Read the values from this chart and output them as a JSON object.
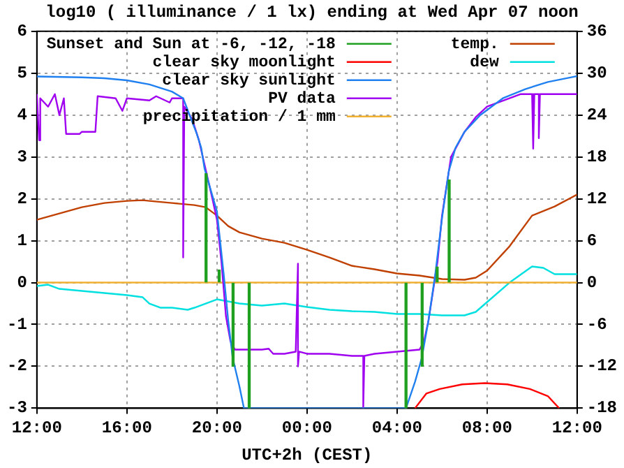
{
  "chart_data": {
    "type": "line",
    "title": "log10 ( illuminance / 1 lx) ending at Wed Apr 07 noon",
    "xlabel": "UTC+2h (CEST)",
    "xlim": [
      "--04-06T12:00",
      "--04-07T12:00"
    ],
    "xticks": [
      {
        "value": "--04-06T12:00",
        "label": "12:00"
      },
      {
        "value": "--04-06T16:00",
        "label": "16:00"
      },
      {
        "value": "--04-06T20:00",
        "label": "20:00"
      },
      {
        "value": "--04-07T00:00",
        "label": "00:00"
      },
      {
        "value": "--04-07T04:00",
        "label": "04:00"
      },
      {
        "value": "--04-07T08:00",
        "label": "08:00"
      },
      {
        "value": "--04-07T12:00",
        "label": "12:00"
      }
    ],
    "ylim": [
      -3,
      6
    ],
    "yticks": [
      -3,
      -2,
      -1,
      0,
      1,
      2,
      3,
      4,
      5,
      6
    ],
    "y2lim": [
      -18,
      36
    ],
    "y2ticks": [
      -18,
      -12,
      -6,
      0,
      6,
      12,
      18,
      24,
      30,
      36
    ],
    "grid": true,
    "legend": "top",
    "marker": "none",
    "series": [
      {
        "name": "Sunset and Sun at -6, -12, -18",
        "type": "bar",
        "color": "#20a020",
        "x": [
          "--04-06T19:31",
          "--04-06T20:06",
          "--04-06T20:43",
          "--04-06T21:26",
          "--04-07T04:24",
          "--04-07T05:07",
          "--04-07T05:47",
          "--04-07T06:19"
        ],
        "values": [
          2.6,
          0.3,
          -2.0,
          -3,
          -3,
          -2.0,
          0.37,
          2.45
        ]
      },
      {
        "name": "clear sky moonlight",
        "color": "#ff0000",
        "x": [
          "--04-07T04:48",
          "--04-07T05:18",
          "--04-07T05:54",
          "--04-07T06:54",
          "--04-07T07:54",
          "--04-07T08:54",
          "--04-07T09:54",
          "--04-07T10:42",
          "--04-07T11:12"
        ],
        "values": [
          -3,
          -2.65,
          -2.54,
          -2.43,
          -2.4,
          -2.43,
          -2.54,
          -2.71,
          -3
        ]
      },
      {
        "name": "clear sky sunlight",
        "color": "#2080f0",
        "x": [
          "--04-06T12:00",
          "--04-06T14:00",
          "--04-06T15:00",
          "--04-06T16:00",
          "--04-06T17:00",
          "--04-06T18:00",
          "--04-06T18:30",
          "--04-06T19:06",
          "--04-06T19:18",
          "--04-06T19:27",
          "--04-06T20:00",
          "--04-06T20:18",
          "--04-06T20:30",
          "--04-06T20:42",
          "--04-06T21:00",
          "--04-06T21:12",
          "--04-07T04:24",
          "--04-07T04:48",
          "--04-07T05:06",
          "--04-07T05:24",
          "--04-07T05:42",
          "--04-07T06:00",
          "--04-07T06:18",
          "--04-07T06:36",
          "--04-07T07:00",
          "--04-07T07:42",
          "--04-07T08:42",
          "--04-07T09:42",
          "--04-07T10:42",
          "--04-07T11:54",
          "--04-07T12:00"
        ],
        "values": [
          4.92,
          4.9,
          4.88,
          4.83,
          4.73,
          4.56,
          4.4,
          3.56,
          3.22,
          2.72,
          1.7,
          0.2,
          -0.9,
          -1.8,
          -2.48,
          -3,
          -3,
          -2.37,
          -1.8,
          -0.9,
          0.2,
          1.54,
          2.66,
          3.22,
          3.6,
          4.0,
          4.4,
          4.62,
          4.79,
          4.92,
          4.93
        ]
      },
      {
        "name": "PV data",
        "color": "#a000f0",
        "x": [
          "--04-06T12:00",
          "--04-06T12:06",
          "--04-06T12:09",
          "--04-06T12:30",
          "--04-06T12:48",
          "--04-06T13:00",
          "--04-06T13:12",
          "--04-06T13:18",
          "--04-06T13:54",
          "--04-06T14:00",
          "--04-06T14:36",
          "--04-06T14:42",
          "--04-06T15:30",
          "--04-06T15:48",
          "--04-06T16:00",
          "--04-06T17:00",
          "--04-06T17:18",
          "--04-06T17:54",
          "--04-06T18:00",
          "--04-06T18:30",
          "--04-06T18:30",
          "--04-06T18:33",
          "--04-06T18:54",
          "--04-06T19:12",
          "--04-06T19:30",
          "--04-06T19:48",
          "--04-06T20:00",
          "--04-06T20:12",
          "--04-06T20:24",
          "--04-06T20:36",
          "--04-06T20:48",
          "--04-06T22:00",
          "--04-06T22:18",
          "--04-06T22:30",
          "--04-06T23:00",
          "--04-06T23:30",
          "--04-06T23:36",
          "--04-06T23:36",
          "--04-06T23:39",
          "--04-07T00:00",
          "--04-07T01:00",
          "--04-07T02:00",
          "--04-07T02:30",
          "--04-07T02:30",
          "--04-07T02:33",
          "--04-07T03:00",
          "--04-07T04:00",
          "--04-07T05:00",
          "--04-07T05:12",
          "--04-07T05:24",
          "--04-07T05:36",
          "--04-07T05:48",
          "--04-07T06:00",
          "--04-07T06:12",
          "--04-07T06:24",
          "--04-07T06:36",
          "--04-07T07:00",
          "--04-07T07:30",
          "--04-07T08:00",
          "--04-07T09:00",
          "--04-07T09:30",
          "--04-07T10:00",
          "--04-07T10:03",
          "--04-07T10:06",
          "--04-07T10:18",
          "--04-07T10:18",
          "--04-07T10:21",
          "--04-07T11:00",
          "--04-07T12:00"
        ],
        "values": [
          4.5,
          3.4,
          4.4,
          4.2,
          4.5,
          4.0,
          4.4,
          3.55,
          3.55,
          3.6,
          3.6,
          4.45,
          4.4,
          4.1,
          4.4,
          4.35,
          4.45,
          4.3,
          4.4,
          4.4,
          0.6,
          4.2,
          3.9,
          3.4,
          2.7,
          2.0,
          1.5,
          0.5,
          -0.8,
          -1.4,
          -1.6,
          -1.6,
          -1.58,
          -1.7,
          -1.7,
          -1.65,
          0.45,
          -2.0,
          -1.65,
          -1.7,
          -1.7,
          -1.75,
          -1.75,
          -3,
          -1.75,
          -1.7,
          -1.65,
          -1.6,
          -1.4,
          -0.9,
          -0.2,
          0.5,
          1.6,
          2.3,
          3.0,
          3.2,
          3.6,
          3.95,
          4.2,
          4.4,
          4.5,
          4.5,
          3.2,
          4.5,
          4.5,
          3.45,
          4.5,
          4.5,
          4.5
        ]
      },
      {
        "name": "precipitation / 1 mm",
        "color": "#f0b030",
        "x": [
          "--04-06T12:00",
          "--04-07T12:00"
        ],
        "values": [
          0,
          0
        ]
      },
      {
        "name": "temp.",
        "color": "#c04000",
        "axis": "y2",
        "x": [
          "--04-06T12:00",
          "--04-06T13:00",
          "--04-06T14:00",
          "--04-06T15:00",
          "--04-06T16:00",
          "--04-06T16:42",
          "--04-06T17:00",
          "--04-06T18:00",
          "--04-06T19:00",
          "--04-06T19:30",
          "--04-06T20:00",
          "--04-06T20:30",
          "--04-06T21:00",
          "--04-06T22:00",
          "--04-06T23:00",
          "--04-07T00:00",
          "--04-07T01:00",
          "--04-07T02:00",
          "--04-07T03:00",
          "--04-07T04:00",
          "--04-07T05:00",
          "--04-07T06:00",
          "--04-07T07:00",
          "--04-07T07:30",
          "--04-07T08:00",
          "--04-07T09:00",
          "--04-07T10:00",
          "--04-07T11:00",
          "--04-07T12:00"
        ],
        "values": [
          9,
          9.9,
          10.8,
          11.4,
          11.7,
          11.8,
          11.7,
          11.4,
          11.1,
          10.8,
          9.6,
          8.1,
          7.2,
          6.3,
          5.7,
          4.7,
          3.6,
          2.4,
          1.9,
          1.3,
          1.0,
          0.5,
          0.4,
          0.7,
          1.7,
          5.2,
          9.6,
          10.9,
          12.6
        ]
      },
      {
        "name": "dew",
        "color": "#00e0e0",
        "axis": "y2",
        "x": [
          "--04-06T12:00",
          "--04-06T12:30",
          "--04-06T13:00",
          "--04-06T14:00",
          "--04-06T15:00",
          "--04-06T16:00",
          "--04-06T16:42",
          "--04-06T17:00",
          "--04-06T17:30",
          "--04-06T18:00",
          "--04-06T18:42",
          "--04-06T19:00",
          "--04-06T19:30",
          "--04-06T20:00",
          "--04-06T21:00",
          "--04-06T22:00",
          "--04-06T23:00",
          "--04-07T00:00",
          "--04-07T01:00",
          "--04-07T02:00",
          "--04-07T03:00",
          "--04-07T04:00",
          "--04-07T05:00",
          "--04-07T06:00",
          "--04-07T07:00",
          "--04-07T07:30",
          "--04-07T08:00",
          "--04-07T09:00",
          "--04-07T10:00",
          "--04-07T10:30",
          "--04-07T11:00",
          "--04-07T11:30",
          "--04-07T12:00"
        ],
        "values": [
          -0.5,
          -0.3,
          -0.9,
          -1.2,
          -1.5,
          -1.8,
          -2.1,
          -3,
          -3.6,
          -3.6,
          -3.9,
          -3.6,
          -3,
          -2.4,
          -3,
          -3.3,
          -3,
          -3.5,
          -3.9,
          -4.1,
          -4.2,
          -4.5,
          -4.5,
          -4.7,
          -4.7,
          -4.2,
          -2.8,
          0,
          2.3,
          2.1,
          1.2,
          1.2,
          1.2
        ]
      }
    ]
  }
}
